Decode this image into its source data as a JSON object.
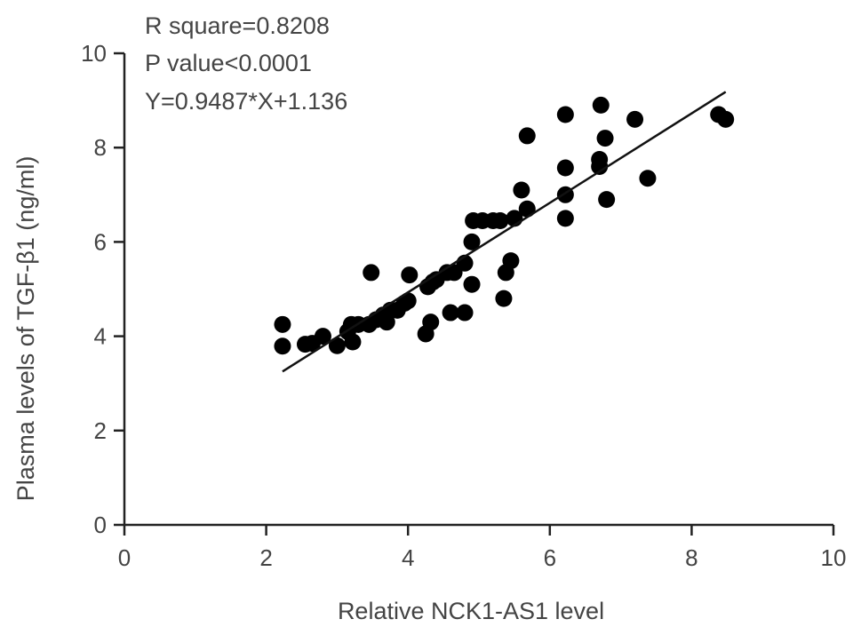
{
  "chart_data": {
    "type": "scatter",
    "title": "",
    "xlabel": "Relative NCK1-AS1 level",
    "ylabel": "Plasma levels of TGF-β1 (ng/ml)",
    "xlim": [
      0,
      10
    ],
    "ylim": [
      0,
      10
    ],
    "xticks": [
      "0",
      "2",
      "4",
      "6",
      "8",
      "10"
    ],
    "yticks": [
      "0",
      "2",
      "4",
      "6",
      "8",
      "10"
    ],
    "grid": false,
    "annotations": [
      "R square=0.8208",
      "P value<0.0001",
      "Y=0.9487*X+1.136"
    ],
    "points": [
      [
        2.23,
        4.25
      ],
      [
        2.23,
        3.79
      ],
      [
        2.55,
        3.83
      ],
      [
        2.65,
        3.85
      ],
      [
        2.8,
        4.0
      ],
      [
        3.0,
        3.8
      ],
      [
        3.15,
        4.1
      ],
      [
        3.2,
        4.25
      ],
      [
        3.22,
        3.88
      ],
      [
        3.3,
        4.25
      ],
      [
        3.45,
        4.25
      ],
      [
        3.48,
        5.35
      ],
      [
        3.55,
        4.35
      ],
      [
        3.65,
        4.45
      ],
      [
        3.7,
        4.3
      ],
      [
        3.75,
        4.55
      ],
      [
        3.85,
        4.55
      ],
      [
        3.95,
        4.7
      ],
      [
        4.0,
        4.75
      ],
      [
        4.02,
        5.3
      ],
      [
        4.25,
        4.05
      ],
      [
        4.28,
        5.05
      ],
      [
        4.32,
        4.3
      ],
      [
        4.35,
        5.15
      ],
      [
        4.4,
        5.2
      ],
      [
        4.55,
        5.35
      ],
      [
        4.6,
        4.5
      ],
      [
        4.65,
        5.35
      ],
      [
        4.8,
        5.55
      ],
      [
        4.8,
        4.5
      ],
      [
        4.9,
        6.0
      ],
      [
        4.9,
        5.1
      ],
      [
        4.92,
        6.45
      ],
      [
        5.05,
        6.45
      ],
      [
        5.2,
        6.45
      ],
      [
        5.3,
        6.45
      ],
      [
        5.35,
        4.8
      ],
      [
        5.38,
        5.35
      ],
      [
        5.45,
        5.6
      ],
      [
        5.5,
        6.5
      ],
      [
        5.6,
        7.1
      ],
      [
        5.68,
        6.7
      ],
      [
        5.68,
        8.25
      ],
      [
        6.22,
        8.7
      ],
      [
        6.22,
        7.57
      ],
      [
        6.22,
        7.0
      ],
      [
        6.22,
        6.5
      ],
      [
        6.7,
        7.75
      ],
      [
        6.7,
        7.6
      ],
      [
        6.72,
        8.9
      ],
      [
        6.78,
        8.2
      ],
      [
        6.8,
        6.9
      ],
      [
        7.2,
        8.6
      ],
      [
        7.38,
        7.35
      ],
      [
        8.38,
        8.7
      ],
      [
        8.48,
        8.6
      ]
    ],
    "fit_line": {
      "slope": 0.9487,
      "intercept": 1.136,
      "x_range": [
        2.23,
        8.48
      ]
    },
    "marker_color": "#000000"
  }
}
